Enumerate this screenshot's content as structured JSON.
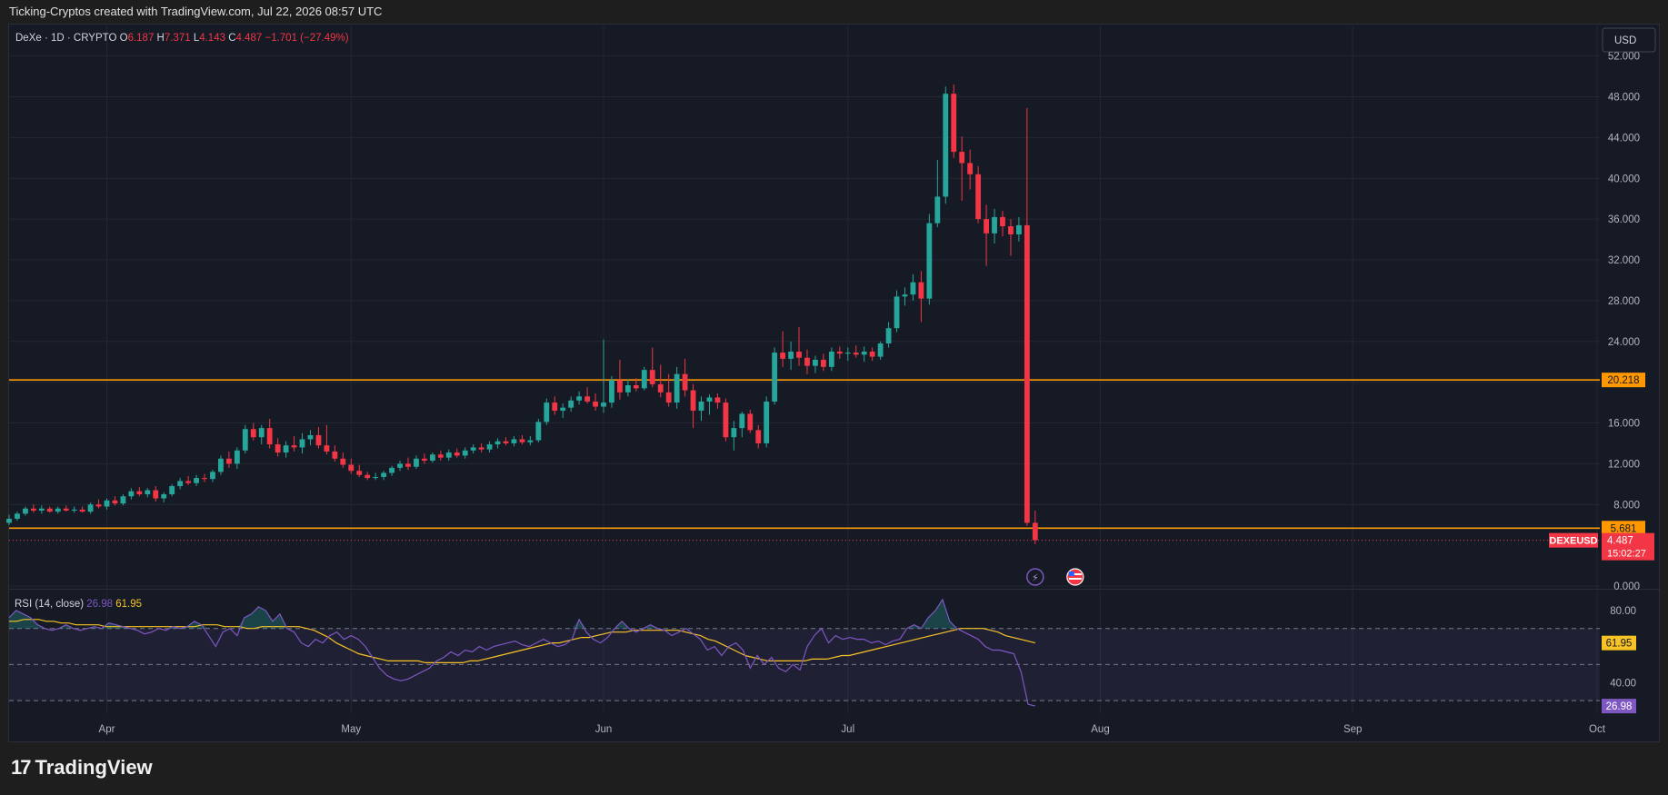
{
  "header": {
    "attribution": "Ticking-Cryptos created with TradingView.com, Jul 22, 2026 08:57 UTC"
  },
  "legend": {
    "symbol": "DeXe · 1D · CRYPTO",
    "o_label": "O",
    "o_value": "6.187",
    "h_label": "H",
    "h_value": "7.371",
    "l_label": "L",
    "l_value": "4.143",
    "c_label": "C",
    "c_value": "4.487",
    "change": "−1.701 (−27.49%)"
  },
  "currency": "USD",
  "footer": {
    "logo_mark": "17",
    "logo_text": "TradingView"
  },
  "colors": {
    "up": "#26a69a",
    "down": "#f23645",
    "level": "#ff9800",
    "rsi": "#7e57c2",
    "rsi_ma": "#f7c325",
    "grid": "#232733",
    "background": "#161a25",
    "text": "#d1d4dc"
  },
  "chart_data": {
    "type": "candlestick",
    "symbol": "DEXEUSD",
    "price_axis": {
      "ticks": [
        "52.000",
        "48.000",
        "44.000",
        "40.000",
        "36.000",
        "32.000",
        "28.000",
        "24.000",
        "20.000",
        "16.000",
        "12.000",
        "8.000",
        "0.000"
      ],
      "ylim": [
        0,
        55
      ]
    },
    "time_axis": {
      "labels": [
        {
          "day": 20,
          "label": "Apr"
        },
        {
          "day": 50,
          "label": "May"
        },
        {
          "day": 81,
          "label": "Jun"
        },
        {
          "day": 111,
          "label": "Jul"
        },
        {
          "day": 142,
          "label": "Aug"
        },
        {
          "day": 173,
          "label": "Sep"
        },
        {
          "day": 203,
          "label": "Oct"
        }
      ],
      "xlim": [
        8,
        203
      ]
    },
    "horizontal_levels": [
      {
        "value": 20.218,
        "label": "20.218"
      },
      {
        "value": 5.681,
        "label": "5.681"
      }
    ],
    "last_price": {
      "symbol": "DEXEUSD",
      "value": 4.487,
      "label": "4.487",
      "countdown": "15:02:27"
    },
    "candles": [
      {
        "d": 8,
        "o": 6.2,
        "h": 7.0,
        "l": 6.0,
        "c": 6.6
      },
      {
        "d": 9,
        "o": 6.6,
        "h": 7.3,
        "l": 6.4,
        "c": 7.1
      },
      {
        "d": 10,
        "o": 7.1,
        "h": 7.8,
        "l": 6.9,
        "c": 7.6
      },
      {
        "d": 11,
        "o": 7.6,
        "h": 8.0,
        "l": 7.2,
        "c": 7.4
      },
      {
        "d": 12,
        "o": 7.4,
        "h": 7.9,
        "l": 7.1,
        "c": 7.6
      },
      {
        "d": 13,
        "o": 7.6,
        "h": 7.8,
        "l": 7.2,
        "c": 7.3
      },
      {
        "d": 14,
        "o": 7.3,
        "h": 7.8,
        "l": 7.1,
        "c": 7.6
      },
      {
        "d": 15,
        "o": 7.6,
        "h": 7.9,
        "l": 7.3,
        "c": 7.4
      },
      {
        "d": 16,
        "o": 7.4,
        "h": 7.8,
        "l": 7.2,
        "c": 7.5
      },
      {
        "d": 17,
        "o": 7.5,
        "h": 7.8,
        "l": 7.2,
        "c": 7.3
      },
      {
        "d": 18,
        "o": 7.3,
        "h": 8.2,
        "l": 7.1,
        "c": 8.0
      },
      {
        "d": 19,
        "o": 8.0,
        "h": 8.5,
        "l": 7.6,
        "c": 7.8
      },
      {
        "d": 20,
        "o": 7.8,
        "h": 8.6,
        "l": 7.5,
        "c": 8.4
      },
      {
        "d": 21,
        "o": 8.4,
        "h": 8.8,
        "l": 7.9,
        "c": 8.1
      },
      {
        "d": 22,
        "o": 8.1,
        "h": 9.0,
        "l": 7.9,
        "c": 8.8
      },
      {
        "d": 23,
        "o": 8.8,
        "h": 9.6,
        "l": 8.5,
        "c": 9.3
      },
      {
        "d": 24,
        "o": 9.3,
        "h": 9.7,
        "l": 8.8,
        "c": 9.0
      },
      {
        "d": 25,
        "o": 9.0,
        "h": 9.6,
        "l": 8.7,
        "c": 9.4
      },
      {
        "d": 26,
        "o": 9.4,
        "h": 9.8,
        "l": 8.3,
        "c": 8.6
      },
      {
        "d": 27,
        "o": 8.6,
        "h": 9.2,
        "l": 8.2,
        "c": 9.0
      },
      {
        "d": 28,
        "o": 9.0,
        "h": 10.0,
        "l": 8.8,
        "c": 9.8
      },
      {
        "d": 29,
        "o": 9.8,
        "h": 10.6,
        "l": 9.5,
        "c": 10.3
      },
      {
        "d": 30,
        "o": 10.3,
        "h": 10.8,
        "l": 9.9,
        "c": 10.1
      },
      {
        "d": 31,
        "o": 10.1,
        "h": 10.9,
        "l": 9.8,
        "c": 10.6
      },
      {
        "d": 32,
        "o": 10.6,
        "h": 11.0,
        "l": 10.2,
        "c": 10.5
      },
      {
        "d": 33,
        "o": 10.5,
        "h": 11.4,
        "l": 10.2,
        "c": 11.2
      },
      {
        "d": 34,
        "o": 11.2,
        "h": 12.8,
        "l": 10.9,
        "c": 12.5
      },
      {
        "d": 35,
        "o": 12.5,
        "h": 13.2,
        "l": 11.6,
        "c": 12.0
      },
      {
        "d": 36,
        "o": 12.0,
        "h": 13.6,
        "l": 11.5,
        "c": 13.3
      },
      {
        "d": 37,
        "o": 13.3,
        "h": 15.8,
        "l": 13.0,
        "c": 15.4
      },
      {
        "d": 38,
        "o": 15.4,
        "h": 16.0,
        "l": 14.3,
        "c": 14.6
      },
      {
        "d": 39,
        "o": 14.6,
        "h": 15.8,
        "l": 13.9,
        "c": 15.5
      },
      {
        "d": 40,
        "o": 15.5,
        "h": 16.4,
        "l": 13.5,
        "c": 13.9
      },
      {
        "d": 41,
        "o": 13.9,
        "h": 14.5,
        "l": 12.7,
        "c": 13.1
      },
      {
        "d": 42,
        "o": 13.1,
        "h": 14.2,
        "l": 12.6,
        "c": 13.8
      },
      {
        "d": 43,
        "o": 13.8,
        "h": 14.7,
        "l": 13.2,
        "c": 13.6
      },
      {
        "d": 44,
        "o": 13.6,
        "h": 15.0,
        "l": 13.0,
        "c": 14.4
      },
      {
        "d": 45,
        "o": 14.4,
        "h": 15.3,
        "l": 13.8,
        "c": 14.8
      },
      {
        "d": 46,
        "o": 14.8,
        "h": 15.6,
        "l": 13.5,
        "c": 13.8
      },
      {
        "d": 47,
        "o": 13.8,
        "h": 15.8,
        "l": 12.9,
        "c": 13.2
      },
      {
        "d": 48,
        "o": 13.2,
        "h": 13.8,
        "l": 12.2,
        "c": 12.5
      },
      {
        "d": 49,
        "o": 12.5,
        "h": 13.1,
        "l": 11.6,
        "c": 11.9
      },
      {
        "d": 50,
        "o": 11.9,
        "h": 12.5,
        "l": 11.0,
        "c": 11.3
      },
      {
        "d": 51,
        "o": 11.3,
        "h": 11.9,
        "l": 10.7,
        "c": 10.9
      },
      {
        "d": 52,
        "o": 10.9,
        "h": 11.2,
        "l": 10.4,
        "c": 10.6
      },
      {
        "d": 53,
        "o": 10.6,
        "h": 11.1,
        "l": 10.4,
        "c": 10.7
      },
      {
        "d": 54,
        "o": 10.7,
        "h": 11.3,
        "l": 10.4,
        "c": 11.1
      },
      {
        "d": 55,
        "o": 11.1,
        "h": 11.8,
        "l": 10.8,
        "c": 11.6
      },
      {
        "d": 56,
        "o": 11.6,
        "h": 12.3,
        "l": 11.3,
        "c": 12.0
      },
      {
        "d": 57,
        "o": 12.0,
        "h": 12.6,
        "l": 11.4,
        "c": 11.7
      },
      {
        "d": 58,
        "o": 11.7,
        "h": 12.8,
        "l": 11.5,
        "c": 12.5
      },
      {
        "d": 59,
        "o": 12.5,
        "h": 13.0,
        "l": 12.0,
        "c": 12.3
      },
      {
        "d": 60,
        "o": 12.3,
        "h": 13.1,
        "l": 12.1,
        "c": 12.9
      },
      {
        "d": 61,
        "o": 12.9,
        "h": 13.3,
        "l": 12.3,
        "c": 12.6
      },
      {
        "d": 62,
        "o": 12.6,
        "h": 13.4,
        "l": 12.3,
        "c": 13.1
      },
      {
        "d": 63,
        "o": 13.1,
        "h": 13.5,
        "l": 12.6,
        "c": 12.8
      },
      {
        "d": 64,
        "o": 12.8,
        "h": 13.6,
        "l": 12.5,
        "c": 13.3
      },
      {
        "d": 65,
        "o": 13.3,
        "h": 13.9,
        "l": 13.0,
        "c": 13.6
      },
      {
        "d": 66,
        "o": 13.6,
        "h": 14.0,
        "l": 13.1,
        "c": 13.4
      },
      {
        "d": 67,
        "o": 13.4,
        "h": 14.2,
        "l": 13.1,
        "c": 13.9
      },
      {
        "d": 68,
        "o": 13.9,
        "h": 14.5,
        "l": 13.5,
        "c": 14.2
      },
      {
        "d": 69,
        "o": 14.2,
        "h": 14.6,
        "l": 13.8,
        "c": 14.0
      },
      {
        "d": 70,
        "o": 14.0,
        "h": 14.7,
        "l": 13.7,
        "c": 14.4
      },
      {
        "d": 71,
        "o": 14.4,
        "h": 14.8,
        "l": 13.9,
        "c": 14.1
      },
      {
        "d": 72,
        "o": 14.1,
        "h": 14.7,
        "l": 13.8,
        "c": 14.3
      },
      {
        "d": 73,
        "o": 14.3,
        "h": 16.4,
        "l": 14.1,
        "c": 16.1
      },
      {
        "d": 74,
        "o": 16.1,
        "h": 18.4,
        "l": 15.8,
        "c": 18.0
      },
      {
        "d": 75,
        "o": 18.0,
        "h": 18.6,
        "l": 16.8,
        "c": 17.2
      },
      {
        "d": 76,
        "o": 17.2,
        "h": 17.9,
        "l": 16.5,
        "c": 17.5
      },
      {
        "d": 77,
        "o": 17.5,
        "h": 18.6,
        "l": 17.1,
        "c": 18.2
      },
      {
        "d": 78,
        "o": 18.2,
        "h": 19.1,
        "l": 17.8,
        "c": 18.6
      },
      {
        "d": 79,
        "o": 18.6,
        "h": 19.5,
        "l": 17.9,
        "c": 18.1
      },
      {
        "d": 80,
        "o": 18.1,
        "h": 18.9,
        "l": 17.2,
        "c": 17.6
      },
      {
        "d": 81,
        "o": 17.6,
        "h": 24.2,
        "l": 17.0,
        "c": 18.0
      },
      {
        "d": 82,
        "o": 18.0,
        "h": 20.6,
        "l": 17.5,
        "c": 20.2
      },
      {
        "d": 83,
        "o": 20.2,
        "h": 22.2,
        "l": 18.3,
        "c": 19.0
      },
      {
        "d": 84,
        "o": 19.0,
        "h": 20.3,
        "l": 18.6,
        "c": 19.7
      },
      {
        "d": 85,
        "o": 19.7,
        "h": 20.4,
        "l": 19.1,
        "c": 19.4
      },
      {
        "d": 86,
        "o": 19.4,
        "h": 21.5,
        "l": 19.2,
        "c": 21.2
      },
      {
        "d": 87,
        "o": 21.2,
        "h": 23.4,
        "l": 19.5,
        "c": 19.8
      },
      {
        "d": 88,
        "o": 19.8,
        "h": 21.7,
        "l": 18.5,
        "c": 19.0
      },
      {
        "d": 89,
        "o": 19.0,
        "h": 20.8,
        "l": 17.6,
        "c": 18.0
      },
      {
        "d": 90,
        "o": 18.0,
        "h": 21.5,
        "l": 17.4,
        "c": 20.8
      },
      {
        "d": 91,
        "o": 20.8,
        "h": 22.3,
        "l": 18.6,
        "c": 19.2
      },
      {
        "d": 92,
        "o": 19.2,
        "h": 19.8,
        "l": 15.5,
        "c": 17.2
      },
      {
        "d": 93,
        "o": 17.2,
        "h": 18.6,
        "l": 16.2,
        "c": 18.1
      },
      {
        "d": 94,
        "o": 18.1,
        "h": 18.8,
        "l": 16.8,
        "c": 18.5
      },
      {
        "d": 95,
        "o": 18.5,
        "h": 18.9,
        "l": 17.4,
        "c": 18.0
      },
      {
        "d": 96,
        "o": 18.0,
        "h": 18.4,
        "l": 14.2,
        "c": 14.6
      },
      {
        "d": 97,
        "o": 14.6,
        "h": 16.2,
        "l": 13.3,
        "c": 15.5
      },
      {
        "d": 98,
        "o": 15.5,
        "h": 17.1,
        "l": 14.6,
        "c": 16.9
      },
      {
        "d": 99,
        "o": 16.9,
        "h": 17.3,
        "l": 15.0,
        "c": 15.3
      },
      {
        "d": 100,
        "o": 15.3,
        "h": 15.8,
        "l": 13.5,
        "c": 14.0
      },
      {
        "d": 101,
        "o": 14.0,
        "h": 18.6,
        "l": 13.6,
        "c": 18.1
      },
      {
        "d": 102,
        "o": 18.1,
        "h": 23.4,
        "l": 17.8,
        "c": 22.9
      },
      {
        "d": 103,
        "o": 22.9,
        "h": 25.0,
        "l": 21.5,
        "c": 22.3
      },
      {
        "d": 104,
        "o": 22.3,
        "h": 24.0,
        "l": 21.2,
        "c": 23.0
      },
      {
        "d": 105,
        "o": 23.0,
        "h": 25.4,
        "l": 21.6,
        "c": 22.4
      },
      {
        "d": 106,
        "o": 22.4,
        "h": 23.2,
        "l": 20.8,
        "c": 21.6
      },
      {
        "d": 107,
        "o": 21.6,
        "h": 22.6,
        "l": 20.9,
        "c": 22.2
      },
      {
        "d": 108,
        "o": 22.2,
        "h": 22.8,
        "l": 21.1,
        "c": 21.5
      },
      {
        "d": 109,
        "o": 21.5,
        "h": 23.4,
        "l": 21.1,
        "c": 23.0
      },
      {
        "d": 110,
        "o": 23.0,
        "h": 23.5,
        "l": 22.3,
        "c": 22.8
      },
      {
        "d": 111,
        "o": 22.8,
        "h": 23.4,
        "l": 22.1,
        "c": 22.9
      },
      {
        "d": 112,
        "o": 22.9,
        "h": 23.6,
        "l": 22.4,
        "c": 22.7
      },
      {
        "d": 113,
        "o": 22.7,
        "h": 23.5,
        "l": 22.0,
        "c": 23.0
      },
      {
        "d": 114,
        "o": 23.0,
        "h": 23.4,
        "l": 22.1,
        "c": 22.5
      },
      {
        "d": 115,
        "o": 22.5,
        "h": 24.0,
        "l": 22.2,
        "c": 23.8
      },
      {
        "d": 116,
        "o": 23.8,
        "h": 25.9,
        "l": 23.4,
        "c": 25.3
      },
      {
        "d": 117,
        "o": 25.3,
        "h": 29.0,
        "l": 24.9,
        "c": 28.4
      },
      {
        "d": 118,
        "o": 28.4,
        "h": 29.3,
        "l": 27.5,
        "c": 28.6
      },
      {
        "d": 119,
        "o": 28.6,
        "h": 30.6,
        "l": 28.0,
        "c": 29.8
      },
      {
        "d": 120,
        "o": 29.8,
        "h": 30.9,
        "l": 25.9,
        "c": 28.2
      },
      {
        "d": 121,
        "o": 28.2,
        "h": 36.5,
        "l": 27.6,
        "c": 35.6
      },
      {
        "d": 122,
        "o": 35.6,
        "h": 41.8,
        "l": 35.2,
        "c": 38.2
      },
      {
        "d": 123,
        "o": 38.2,
        "h": 49.0,
        "l": 37.5,
        "c": 48.3
      },
      {
        "d": 124,
        "o": 48.3,
        "h": 49.2,
        "l": 42.0,
        "c": 42.6
      },
      {
        "d": 125,
        "o": 42.6,
        "h": 44.1,
        "l": 37.8,
        "c": 41.5
      },
      {
        "d": 126,
        "o": 41.5,
        "h": 42.8,
        "l": 38.9,
        "c": 40.4
      },
      {
        "d": 127,
        "o": 40.4,
        "h": 41.2,
        "l": 35.6,
        "c": 36.0
      },
      {
        "d": 128,
        "o": 36.0,
        "h": 37.4,
        "l": 31.4,
        "c": 34.6
      },
      {
        "d": 129,
        "o": 34.6,
        "h": 37.0,
        "l": 33.6,
        "c": 36.2
      },
      {
        "d": 130,
        "o": 36.2,
        "h": 36.8,
        "l": 34.3,
        "c": 35.3
      },
      {
        "d": 131,
        "o": 35.3,
        "h": 36.0,
        "l": 32.4,
        "c": 34.5
      },
      {
        "d": 132,
        "o": 34.5,
        "h": 36.2,
        "l": 33.8,
        "c": 35.4
      },
      {
        "d": 133,
        "o": 35.4,
        "h": 46.9,
        "l": 5.9,
        "c": 6.2
      },
      {
        "d": 134,
        "o": 6.2,
        "h": 7.4,
        "l": 4.1,
        "c": 4.5
      }
    ],
    "rsi": {
      "label": "RSI (14, close)",
      "rsi_value": 26.98,
      "ma_value": 61.95,
      "rsi_value_label": "26.98",
      "ma_value_label": "61.95",
      "ticks": [
        "80.00",
        "40.00"
      ],
      "bands": [
        70,
        50,
        30
      ],
      "ylim": [
        23,
        90
      ],
      "series_rsi": [
        76,
        80,
        78,
        76,
        72,
        70,
        69,
        70,
        72,
        70,
        69,
        70,
        71,
        70,
        73,
        72,
        71,
        70,
        69,
        67,
        68,
        70,
        69,
        71,
        70,
        71,
        74,
        72,
        66,
        60,
        68,
        70,
        66,
        76,
        78,
        82,
        80,
        74,
        78,
        70,
        68,
        62,
        60,
        64,
        62,
        66,
        68,
        64,
        66,
        64,
        60,
        54,
        48,
        44,
        42,
        41,
        42,
        44,
        46,
        48,
        52,
        54,
        57,
        55,
        58,
        57,
        60,
        58,
        60,
        61,
        62,
        63,
        61,
        60,
        62,
        64,
        62,
        60,
        61,
        64,
        75,
        68,
        64,
        62,
        65,
        70,
        74,
        70,
        68,
        70,
        72,
        70,
        69,
        66,
        68,
        70,
        67,
        64,
        58,
        60,
        55,
        60,
        62,
        58,
        48,
        55,
        50,
        54,
        48,
        46,
        50,
        47,
        60,
        66,
        70,
        62,
        66,
        64,
        65,
        64,
        64,
        62,
        63,
        61,
        63,
        64,
        70,
        72,
        70,
        76,
        80,
        86,
        74,
        70,
        68,
        66,
        64,
        60,
        58,
        58,
        57,
        56,
        46,
        28,
        27
      ],
      "series_ma": [
        74,
        74,
        75,
        75,
        75,
        74,
        74,
        73,
        73,
        72,
        72,
        72,
        72,
        71,
        71,
        71,
        71,
        71,
        71,
        71,
        71,
        71,
        71,
        71,
        71,
        71,
        72,
        72,
        72,
        71,
        71,
        71,
        70,
        70,
        71,
        71,
        71,
        71,
        71,
        71,
        70,
        69,
        67,
        65,
        62,
        60,
        58,
        56,
        55,
        54,
        53,
        52,
        52,
        52,
        52,
        52,
        51,
        51,
        51,
        51,
        51,
        51,
        52,
        52,
        53,
        54,
        55,
        56,
        57,
        58,
        59,
        60,
        61,
        62,
        62,
        63,
        64,
        65,
        65,
        66,
        67,
        68,
        68,
        68,
        69,
        69,
        69,
        69,
        69,
        69,
        69,
        68,
        67,
        66,
        64,
        63,
        61,
        59,
        57,
        55,
        54,
        53,
        52,
        52,
        52,
        52,
        52,
        52,
        53,
        53,
        53,
        54,
        55,
        55,
        56,
        57,
        58,
        59,
        60,
        61,
        62,
        63,
        64,
        65,
        66,
        67,
        68,
        69,
        70,
        70,
        70,
        70,
        69,
        68,
        66,
        65,
        64,
        63,
        62
      ]
    }
  }
}
